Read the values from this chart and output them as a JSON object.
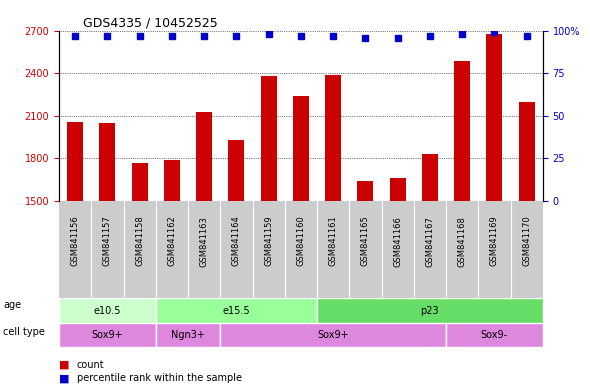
{
  "title": "GDS4335 / 10452525",
  "samples": [
    "GSM841156",
    "GSM841157",
    "GSM841158",
    "GSM841162",
    "GSM841163",
    "GSM841164",
    "GSM841159",
    "GSM841160",
    "GSM841161",
    "GSM841165",
    "GSM841166",
    "GSM841167",
    "GSM841168",
    "GSM841169",
    "GSM841170"
  ],
  "counts": [
    2060,
    2050,
    1770,
    1790,
    2130,
    1930,
    2380,
    2240,
    2390,
    1640,
    1660,
    1830,
    2490,
    2680,
    2200
  ],
  "percentiles": [
    97,
    97,
    97,
    97,
    97,
    97,
    98,
    97,
    97,
    96,
    96,
    97,
    98,
    99,
    97
  ],
  "bar_color": "#cc0000",
  "dot_color": "#0000cc",
  "ylim_left": [
    1500,
    2700
  ],
  "ylim_right": [
    0,
    100
  ],
  "yticks_left": [
    1500,
    1800,
    2100,
    2400,
    2700
  ],
  "yticks_right": [
    0,
    25,
    50,
    75,
    100
  ],
  "age_groups": [
    {
      "label": "e10.5",
      "start": 0,
      "end": 3,
      "color": "#ccffcc"
    },
    {
      "label": "e15.5",
      "start": 3,
      "end": 8,
      "color": "#99ff99"
    },
    {
      "label": "p23",
      "start": 8,
      "end": 15,
      "color": "#66dd66"
    }
  ],
  "cell_groups": [
    {
      "label": "Sox9+",
      "start": 0,
      "end": 3,
      "color": "#ee88ee"
    },
    {
      "label": "Ngn3+",
      "start": 3,
      "end": 5,
      "color": "#ee88ee"
    },
    {
      "label": "Sox9+",
      "start": 5,
      "end": 12,
      "color": "#ee88ee"
    },
    {
      "label": "Sox9-",
      "start": 12,
      "end": 15,
      "color": "#ee88ee"
    }
  ],
  "xlabel_area_color": "#cccccc",
  "legend_count_color": "#cc0000",
  "legend_dot_color": "#0000cc"
}
